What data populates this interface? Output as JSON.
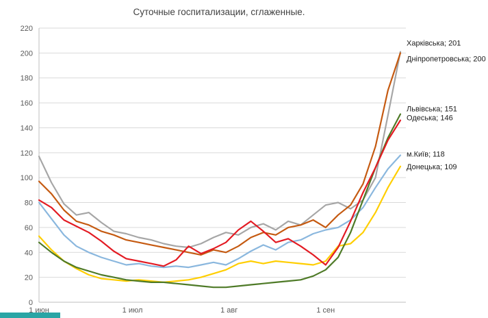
{
  "title": "Суточные госпитализации, сглаженные.",
  "bottom_strip": {
    "color": "#2aa5a5"
  },
  "chart_data": {
    "type": "line",
    "title": "Суточные госпитализации, сглаженные.",
    "xlabel": "",
    "ylabel": "",
    "ylim": [
      0,
      220
    ],
    "y_tick_step": 20,
    "grid": "horizontal",
    "legend": "end-of-line-labels",
    "x_unit": "days since 1 июн",
    "x_ticks": [
      {
        "day": 0,
        "label": "1 июн"
      },
      {
        "day": 30,
        "label": "1 июл"
      },
      {
        "day": 61,
        "label": "1 авг"
      },
      {
        "day": 92,
        "label": "1 сен"
      }
    ],
    "x": [
      0,
      4,
      8,
      12,
      16,
      20,
      24,
      28,
      32,
      36,
      40,
      44,
      48,
      52,
      56,
      60,
      64,
      68,
      72,
      76,
      80,
      84,
      88,
      92,
      96,
      100,
      104,
      108,
      112,
      116
    ],
    "series": [
      {
        "name": "Харківська",
        "final_value": 201,
        "label": "Харківська; 201",
        "color": "#a6a6a6",
        "values": [
          117,
          96,
          79,
          70,
          72,
          64,
          57,
          55,
          52,
          50,
          47,
          45,
          44,
          47,
          52,
          56,
          54,
          60,
          63,
          58,
          65,
          62,
          70,
          78,
          80,
          75,
          82,
          100,
          150,
          201
        ]
      },
      {
        "name": "Дніпропетровська",
        "final_value": 200,
        "label": "Дніпропетровська; 200",
        "color": "#c55a11",
        "values": [
          97,
          87,
          74,
          65,
          62,
          57,
          54,
          50,
          48,
          46,
          44,
          42,
          40,
          38,
          42,
          40,
          45,
          52,
          56,
          54,
          60,
          62,
          66,
          60,
          70,
          78,
          95,
          125,
          170,
          200
        ]
      },
      {
        "name": "Львівська",
        "final_value": 151,
        "label": "Львівська; 151",
        "color": "#4e7a27",
        "values": [
          48,
          40,
          33,
          28,
          25,
          22,
          20,
          18,
          17,
          16,
          16,
          15,
          14,
          13,
          12,
          12,
          13,
          14,
          15,
          16,
          17,
          18,
          21,
          26,
          36,
          56,
          82,
          108,
          132,
          151
        ]
      },
      {
        "name": "Одеська",
        "final_value": 146,
        "label": "Одеська; 146",
        "color": "#e31b23",
        "values": [
          82,
          76,
          66,
          61,
          56,
          49,
          41,
          35,
          33,
          31,
          29,
          34,
          45,
          39,
          43,
          48,
          58,
          65,
          57,
          48,
          51,
          45,
          38,
          30,
          44,
          65,
          88,
          108,
          130,
          146
        ]
      },
      {
        "name": "м.Київ",
        "final_value": 118,
        "label": "м.Київ; 118",
        "color": "#8ab7de",
        "values": [
          80,
          67,
          54,
          45,
          40,
          36,
          33,
          30,
          31,
          29,
          28,
          29,
          28,
          30,
          32,
          30,
          35,
          41,
          46,
          42,
          48,
          50,
          55,
          58,
          60,
          66,
          76,
          92,
          107,
          118
        ]
      },
      {
        "name": "Донецька",
        "final_value": 109,
        "label": "Донецька; 109",
        "color": "#ffce00",
        "values": [
          53,
          42,
          33,
          27,
          22,
          19,
          18,
          17,
          18,
          17,
          16,
          17,
          18,
          20,
          23,
          26,
          31,
          33,
          31,
          33,
          32,
          31,
          30,
          33,
          45,
          47,
          56,
          72,
          92,
          109
        ]
      }
    ]
  }
}
